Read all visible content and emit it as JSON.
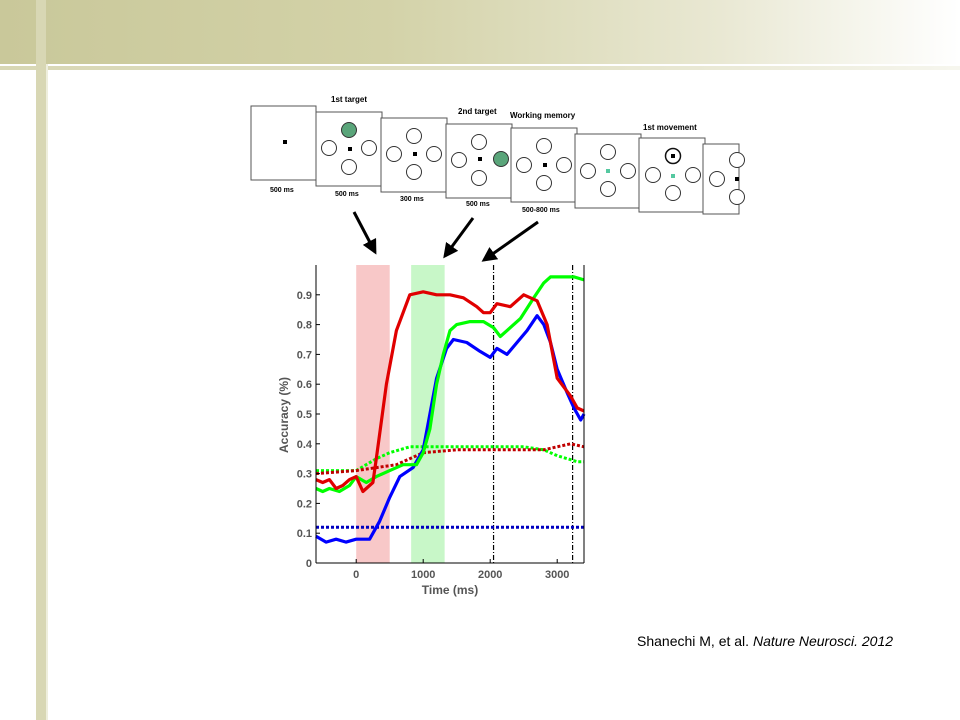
{
  "citation": {
    "authors": "Shanechi M, et al.",
    "journal": "Nature Neurosci. 2012"
  },
  "task_diagram": {
    "panel_titles": [
      "1st target",
      "2nd target",
      "Working memory",
      "1st movement"
    ],
    "durations": [
      "500 ms",
      "500 ms",
      "300 ms",
      "500 ms",
      "500-800 ms"
    ],
    "colors": {
      "target_fill": "#5aa57a",
      "cue": "#55c8a0"
    }
  },
  "chart_data": {
    "type": "line",
    "xlabel": "Time (ms)",
    "ylabel": "Accuracy (%)",
    "xlim": [
      -600,
      3400
    ],
    "ylim": [
      0,
      1.0
    ],
    "xticks": [
      0,
      1000,
      2000,
      3000
    ],
    "yticks": [
      0,
      0.1,
      0.2,
      0.3,
      0.4,
      0.5,
      0.6,
      0.7,
      0.8,
      0.9
    ],
    "shaded_regions": [
      {
        "x": [
          0,
          500
        ],
        "color": "#f8c8c8"
      },
      {
        "x": [
          820,
          1320
        ],
        "color": "#c8f7c8"
      }
    ],
    "vlines": [
      2050,
      3230
    ],
    "series": [
      {
        "color": "#00ff00",
        "style": "dotted",
        "points": [
          [
            -600,
            0.31
          ],
          [
            0,
            0.31
          ],
          [
            300,
            0.35
          ],
          [
            500,
            0.37
          ],
          [
            800,
            0.39
          ],
          [
            1000,
            0.39
          ],
          [
            1500,
            0.39
          ],
          [
            2000,
            0.39
          ],
          [
            2500,
            0.39
          ],
          [
            2800,
            0.38
          ],
          [
            3000,
            0.36
          ],
          [
            3300,
            0.34
          ],
          [
            3400,
            0.34
          ]
        ]
      },
      {
        "color": "#c00000",
        "style": "dotted",
        "points": [
          [
            -600,
            0.3
          ],
          [
            0,
            0.31
          ],
          [
            300,
            0.32
          ],
          [
            600,
            0.33
          ],
          [
            900,
            0.36
          ],
          [
            1000,
            0.37
          ],
          [
            1500,
            0.38
          ],
          [
            2000,
            0.38
          ],
          [
            2500,
            0.38
          ],
          [
            2800,
            0.38
          ],
          [
            3000,
            0.39
          ],
          [
            3200,
            0.4
          ],
          [
            3400,
            0.39
          ]
        ]
      },
      {
        "color": "#0000c0",
        "style": "dotted",
        "points": [
          [
            -600,
            0.12
          ],
          [
            3400,
            0.12
          ]
        ]
      },
      {
        "color": "#0000ff",
        "style": "solid",
        "points": [
          [
            -600,
            0.09
          ],
          [
            -450,
            0.07
          ],
          [
            -300,
            0.08
          ],
          [
            -150,
            0.07
          ],
          [
            0,
            0.08
          ],
          [
            200,
            0.08
          ],
          [
            350,
            0.14
          ],
          [
            500,
            0.22
          ],
          [
            650,
            0.29
          ],
          [
            850,
            0.32
          ],
          [
            1000,
            0.38
          ],
          [
            1100,
            0.5
          ],
          [
            1200,
            0.62
          ],
          [
            1350,
            0.72
          ],
          [
            1450,
            0.75
          ],
          [
            1650,
            0.74
          ],
          [
            1850,
            0.71
          ],
          [
            2000,
            0.69
          ],
          [
            2100,
            0.72
          ],
          [
            2250,
            0.7
          ],
          [
            2400,
            0.74
          ],
          [
            2550,
            0.78
          ],
          [
            2700,
            0.83
          ],
          [
            2800,
            0.8
          ],
          [
            2900,
            0.74
          ],
          [
            3000,
            0.65
          ],
          [
            3150,
            0.57
          ],
          [
            3250,
            0.52
          ],
          [
            3350,
            0.48
          ],
          [
            3400,
            0.5
          ]
        ]
      },
      {
        "color": "#00ff00",
        "style": "solid",
        "points": [
          [
            -600,
            0.25
          ],
          [
            -500,
            0.24
          ],
          [
            -400,
            0.25
          ],
          [
            -250,
            0.24
          ],
          [
            -100,
            0.26
          ],
          [
            0,
            0.29
          ],
          [
            150,
            0.27
          ],
          [
            300,
            0.29
          ],
          [
            500,
            0.31
          ],
          [
            700,
            0.33
          ],
          [
            900,
            0.33
          ],
          [
            1000,
            0.37
          ],
          [
            1100,
            0.45
          ],
          [
            1200,
            0.6
          ],
          [
            1300,
            0.7
          ],
          [
            1400,
            0.78
          ],
          [
            1500,
            0.8
          ],
          [
            1700,
            0.81
          ],
          [
            1900,
            0.81
          ],
          [
            2050,
            0.79
          ],
          [
            2150,
            0.76
          ],
          [
            2250,
            0.78
          ],
          [
            2450,
            0.82
          ],
          [
            2650,
            0.89
          ],
          [
            2800,
            0.94
          ],
          [
            2900,
            0.96
          ],
          [
            3100,
            0.96
          ],
          [
            3250,
            0.96
          ],
          [
            3400,
            0.95
          ]
        ]
      },
      {
        "color": "#e00000",
        "style": "solid",
        "points": [
          [
            -600,
            0.28
          ],
          [
            -500,
            0.27
          ],
          [
            -400,
            0.28
          ],
          [
            -300,
            0.25
          ],
          [
            -200,
            0.26
          ],
          [
            -100,
            0.28
          ],
          [
            0,
            0.29
          ],
          [
            100,
            0.24
          ],
          [
            250,
            0.27
          ],
          [
            300,
            0.35
          ],
          [
            450,
            0.6
          ],
          [
            600,
            0.78
          ],
          [
            700,
            0.84
          ],
          [
            800,
            0.9
          ],
          [
            1000,
            0.91
          ],
          [
            1200,
            0.9
          ],
          [
            1400,
            0.9
          ],
          [
            1600,
            0.89
          ],
          [
            1800,
            0.86
          ],
          [
            1900,
            0.84
          ],
          [
            2000,
            0.84
          ],
          [
            2100,
            0.87
          ],
          [
            2300,
            0.86
          ],
          [
            2500,
            0.9
          ],
          [
            2700,
            0.88
          ],
          [
            2850,
            0.8
          ],
          [
            3000,
            0.62
          ],
          [
            3200,
            0.56
          ],
          [
            3300,
            0.52
          ],
          [
            3400,
            0.51
          ]
        ]
      }
    ]
  }
}
